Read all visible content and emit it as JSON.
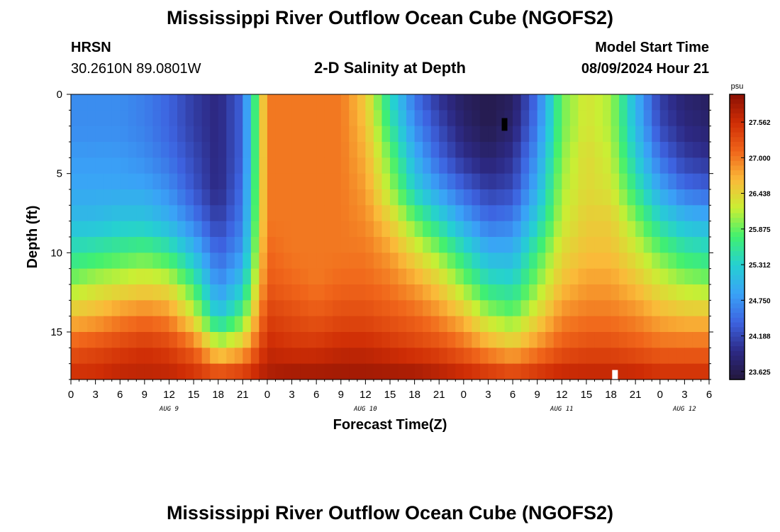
{
  "header": {
    "title": "Mississippi River Outflow Ocean Cube (NGOFS2)",
    "station_name": "HRSN",
    "station_coords": "30.2610N  89.0801W",
    "subtitle": "2-D Salinity at Depth",
    "model_start_label": "Model Start Time",
    "model_start_value": "08/09/2024 Hour 21"
  },
  "footer": {
    "title": "Mississippi River Outflow Ocean Cube (NGOFS2)"
  },
  "chart_data": {
    "type": "heatmap",
    "title": "2-D Salinity at Depth",
    "xlabel": "Forecast Time(Z)",
    "ylabel": "Depth (ft)",
    "x_hours_range": [
      0,
      78
    ],
    "x_tick_labels": [
      "0",
      "3",
      "6",
      "9",
      "12",
      "15",
      "18",
      "21",
      "0",
      "3",
      "6",
      "9",
      "12",
      "15",
      "18",
      "21",
      "0",
      "3",
      "6",
      "9",
      "12",
      "15",
      "18",
      "21",
      "0",
      "3",
      "6"
    ],
    "x_date_labels": [
      {
        "label": "AUG 9",
        "hour": 12
      },
      {
        "label": "AUG 10",
        "hour": 36
      },
      {
        "label": "AUG 11",
        "hour": 60
      },
      {
        "label": "AUG 12",
        "hour": 75
      }
    ],
    "y_range": [
      0,
      18
    ],
    "y_ticks": [
      0,
      5,
      10,
      15
    ],
    "colorbar": {
      "unit": "psu",
      "min": 23.5,
      "max": 28.0,
      "tick_values": [
        23.625,
        24.188,
        24.75,
        25.312,
        25.875,
        26.438,
        27.0,
        27.562
      ],
      "tick_labels": [
        "23.625",
        "24.188",
        "24.750",
        "25.312",
        "25.875",
        "26.438",
        "27.000",
        "27.562"
      ],
      "colors": [
        "#23173d",
        "#2d2a86",
        "#3d63e0",
        "#3aa2f7",
        "#25d0d2",
        "#40f070",
        "#c9ef34",
        "#faba39",
        "#f0651a",
        "#cf2d05",
        "#8a1004"
      ]
    },
    "time_hours": [
      0,
      3,
      6,
      9,
      12,
      15,
      18,
      21,
      24,
      27,
      30,
      33,
      36,
      39,
      42,
      45,
      48,
      51,
      54,
      57,
      60,
      63,
      66,
      69,
      72,
      75,
      78
    ],
    "depth_rows_ft": [
      0,
      2,
      4,
      6,
      8,
      10,
      12,
      14,
      16,
      18
    ],
    "salinity_psu": [
      [
        24.7,
        24.7,
        24.7,
        24.6,
        24.4,
        24.1,
        23.9,
        24.4,
        27.0,
        27.0,
        27.0,
        27.0,
        26.5,
        25.4,
        24.5,
        24.0,
        23.7,
        23.6,
        23.7,
        24.5,
        25.9,
        26.3,
        26.1,
        25.0,
        24.1,
        23.8,
        23.7
      ],
      [
        24.7,
        24.7,
        24.7,
        24.6,
        24.4,
        24.1,
        23.9,
        24.4,
        27.0,
        27.0,
        27.0,
        27.0,
        26.6,
        25.6,
        24.7,
        24.2,
        23.8,
        23.6,
        23.8,
        24.6,
        25.9,
        26.3,
        26.1,
        25.1,
        24.2,
        23.9,
        23.8
      ],
      [
        24.8,
        24.8,
        24.8,
        24.7,
        24.5,
        24.2,
        23.9,
        24.4,
        27.0,
        27.0,
        27.0,
        27.0,
        26.7,
        25.9,
        25.0,
        24.4,
        24.0,
        23.8,
        24.0,
        24.8,
        26.0,
        26.4,
        26.2,
        25.3,
        24.5,
        24.1,
        24.0
      ],
      [
        24.9,
        24.9,
        24.9,
        24.9,
        24.7,
        24.3,
        23.9,
        24.5,
        27.0,
        27.0,
        27.0,
        27.0,
        26.8,
        26.1,
        25.3,
        24.8,
        24.4,
        24.1,
        24.2,
        25.0,
        26.1,
        26.4,
        26.3,
        25.6,
        24.9,
        24.5,
        24.4
      ],
      [
        25.1,
        25.1,
        25.2,
        25.2,
        25.0,
        24.6,
        24.1,
        24.6,
        27.0,
        27.0,
        27.0,
        27.0,
        26.9,
        26.5,
        25.9,
        25.4,
        24.9,
        24.5,
        24.6,
        25.3,
        26.2,
        26.5,
        26.5,
        26.0,
        25.4,
        25.1,
        25.0
      ],
      [
        25.5,
        25.6,
        25.7,
        25.8,
        25.6,
        25.1,
        24.4,
        24.8,
        27.1,
        27.0,
        27.0,
        27.0,
        27.0,
        26.8,
        26.4,
        26.0,
        25.5,
        25.0,
        25.0,
        25.7,
        26.4,
        26.6,
        26.6,
        26.3,
        25.9,
        25.6,
        25.5
      ],
      [
        26.0,
        26.2,
        26.3,
        26.4,
        26.3,
        25.7,
        24.7,
        25.2,
        27.2,
        27.1,
        27.0,
        27.1,
        27.1,
        27.0,
        26.8,
        26.5,
        26.0,
        25.5,
        25.4,
        26.0,
        26.6,
        26.8,
        26.8,
        26.6,
        26.3,
        26.1,
        26.0
      ],
      [
        26.6,
        26.7,
        26.9,
        27.0,
        26.9,
        26.3,
        25.2,
        25.8,
        27.4,
        27.3,
        27.2,
        27.3,
        27.3,
        27.2,
        27.1,
        26.9,
        26.6,
        26.1,
        25.9,
        26.4,
        26.9,
        27.0,
        27.0,
        26.9,
        26.7,
        26.6,
        26.6
      ],
      [
        27.2,
        27.3,
        27.4,
        27.5,
        27.4,
        27.1,
        26.3,
        26.6,
        27.6,
        27.5,
        27.5,
        27.6,
        27.6,
        27.5,
        27.4,
        27.3,
        27.1,
        26.8,
        26.6,
        26.9,
        27.2,
        27.3,
        27.3,
        27.2,
        27.1,
        27.1,
        27.1
      ],
      [
        27.6,
        27.6,
        27.7,
        27.7,
        27.7,
        27.6,
        27.5,
        27.6,
        27.8,
        27.9,
        27.9,
        27.9,
        27.9,
        27.9,
        27.9,
        27.8,
        27.7,
        27.6,
        27.5,
        27.6,
        27.7,
        27.7,
        27.7,
        27.7,
        27.6,
        27.6,
        27.6
      ]
    ],
    "markers": [
      {
        "hour": 53,
        "depth_from": 1.5,
        "depth_to": 2.3,
        "color": "#000000"
      },
      {
        "hour": 66.5,
        "depth_from": 17.4,
        "depth_to": 18.0,
        "color": "#ffffff"
      }
    ]
  }
}
